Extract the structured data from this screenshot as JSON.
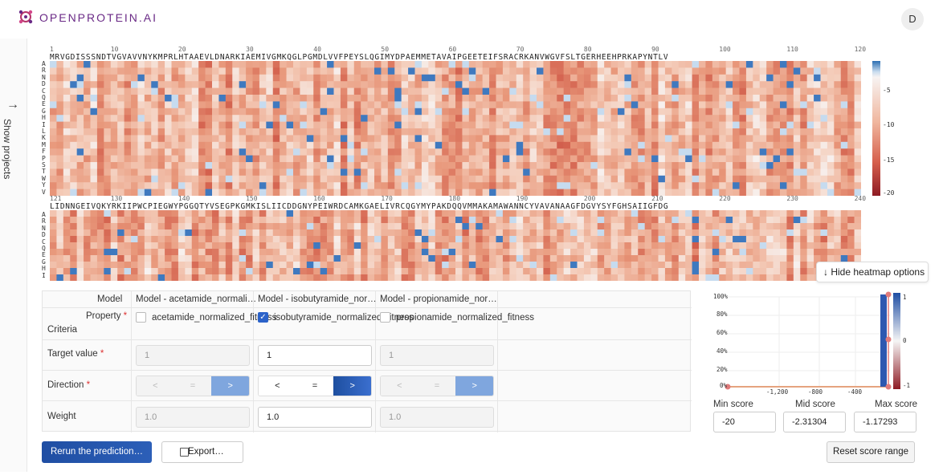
{
  "brand": {
    "name": "OPENPROTEIN.AI"
  },
  "user": {
    "avatar_initial": "D"
  },
  "sidebar": {
    "label": "Show projects"
  },
  "heatmap": {
    "row1": {
      "sequence": "MRVGDISSSNDTVGVAVVNYKMPRLHTAAEVLDNARKIAEMIVGMKQGLPGMDLVVFPEYSLQGIMYDPAEMMETAVAIPGEETEIFSRACRKANVWGVFSLTGERHEEHPRKAPYNTLV",
      "ticks": [
        "1",
        "10",
        "20",
        "30",
        "40",
        "50",
        "60",
        "70",
        "80",
        "90",
        "100",
        "110",
        "120"
      ]
    },
    "row2": {
      "sequence": "LIDNNGEIVQKYRKIIPWCPIEGWYPGGQTYVSEGPKGMKISLIICDDGNYPEIWRDCAMKGAELIVRCQGYMYPAKDQQVMMAKAMAWANNCYVAVANAAGFDGVYSYFGHSAIIGFDG",
      "ticks": [
        "121",
        "130",
        "140",
        "150",
        "160",
        "170",
        "180",
        "190",
        "200",
        "210",
        "220",
        "230",
        "240"
      ]
    },
    "amino_acids": [
      "A",
      "R",
      "N",
      "D",
      "C",
      "Q",
      "E",
      "G",
      "H",
      "I",
      "L",
      "K",
      "M",
      "F",
      "P",
      "S",
      "T",
      "W",
      "Y",
      "V"
    ],
    "colorbar_ticks": [
      "-5",
      "-10",
      "-15",
      "-20"
    ],
    "hide_options_label": "Hide heatmap options"
  },
  "criteria": {
    "model_label": "Model",
    "property_label": "Property",
    "criteria_label": "Criteria",
    "target_label": "Target value",
    "direction_label": "Direction",
    "weight_label": "Weight",
    "models": [
      {
        "name": "Model - acetamide_normali…",
        "property": "acetamide_normalized_fitness",
        "checked": false,
        "target": "1",
        "weight": "1.0"
      },
      {
        "name": "Model - isobutyramide_nor…",
        "property": "isobutyramide_normalized_fitness",
        "checked": true,
        "target": "1",
        "weight": "1.0"
      },
      {
        "name": "Model - propionamide_nor…",
        "property": "propionamide_normalized_fitness",
        "checked": false,
        "target": "1",
        "weight": "1.0"
      }
    ],
    "direction_symbols": [
      "<",
      "=",
      ">"
    ]
  },
  "score_chart": {
    "y_ticks": [
      "100%",
      "80%",
      "60%",
      "40%",
      "20%",
      "0%"
    ],
    "x_ticks": [
      "-1,200",
      "-800",
      "-400"
    ],
    "cbar_ticks": [
      "1",
      "0",
      "-1"
    ]
  },
  "scores": {
    "min_label": "Min score",
    "mid_label": "Mid score",
    "max_label": "Max score",
    "min_value": "-20",
    "mid_value": "-2.31304",
    "max_value": "-1.17293",
    "reset_label": "Reset score range"
  },
  "actions": {
    "rerun_label": "Rerun the prediction…",
    "export_label": "Export…"
  },
  "colors": {
    "accent": "#2c5fb8",
    "brand": "#6a2a86"
  }
}
